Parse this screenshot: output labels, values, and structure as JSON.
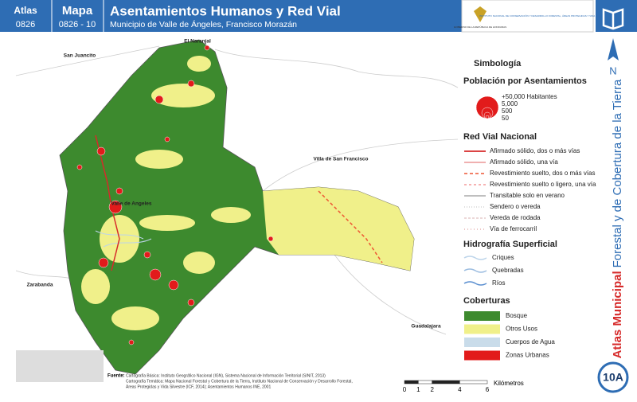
{
  "header": {
    "atlas_label": "Atlas",
    "atlas_code": "0826",
    "map_label": "Mapa",
    "map_code": "0826 - 10",
    "title": "Asentamientos Humanos y Red Vial",
    "subtitle": "Municipio de Valle de Ángeles, Francisco Morazán",
    "logo_left": "GOBIERNO DE LA REPÚBLICA DE HONDURAS",
    "logo_right": "INSTITUTO NACIONAL DE CONSERVACIÓN Y DESARROLLO FORESTAL, ÁREAS PROTEGIDAS Y VIDA SILVESTRE ICF"
  },
  "side": {
    "north": "N",
    "atlas_bold": "Atlas Municipal",
    "atlas_rest": "Forestal y de Cobertura de la Tierra",
    "sheet": "10A"
  },
  "places": [
    "El Naranjal",
    "San Juancito",
    "Villa de San Francisco",
    "Valle de Angeles",
    "Zarabanda",
    "Guadalajara"
  ],
  "legend": {
    "title": "Simbología",
    "population": {
      "title": "Población por Asentamientos",
      "items": [
        "+50,000 Habitantes",
        "5,000",
        "500",
        "50"
      ]
    },
    "roads": {
      "title": "Red Vial Nacional",
      "items": [
        "Afirmado sólido, dos o más vías",
        "Afirmado sólido, una vía",
        "Revestimiento suelto, dos o más vías",
        "Revestimiento suelto o ligero, una vía",
        "Transitable solo en verano",
        "Sendero o vereda",
        "Vereda de rodada",
        "Vía de ferrocarril"
      ]
    },
    "hydro": {
      "title": "Hidrografía Superficial",
      "items": [
        "Criques",
        "Quebradas",
        "Ríos"
      ]
    },
    "cover": {
      "title": "Coberturas",
      "items": [
        "Bosque",
        "Otros Usos",
        "Cuerpos de Agua",
        "Zonas Urbanas"
      ]
    }
  },
  "footer": {
    "source_label": "Fuente:",
    "lines": [
      "Cartografía Básica: Instituto Geográfico Nacional (IGN), Sistema Nacional de Información Territorial (SINIT, 2013)",
      "Cartografía Temática: Mapa Nacional Forestal y Cobertura de la Tierra, Instituto Nacional de Conservación y Desarrollo Forestal,",
      "Áreas Protegidas y Vida Silvestre (ICF, 2014); Asentamientos Humanos INE, 2001"
    ]
  },
  "scale": {
    "ticks": [
      0,
      1,
      2,
      4,
      6
    ],
    "unit": "Kilómetros"
  }
}
